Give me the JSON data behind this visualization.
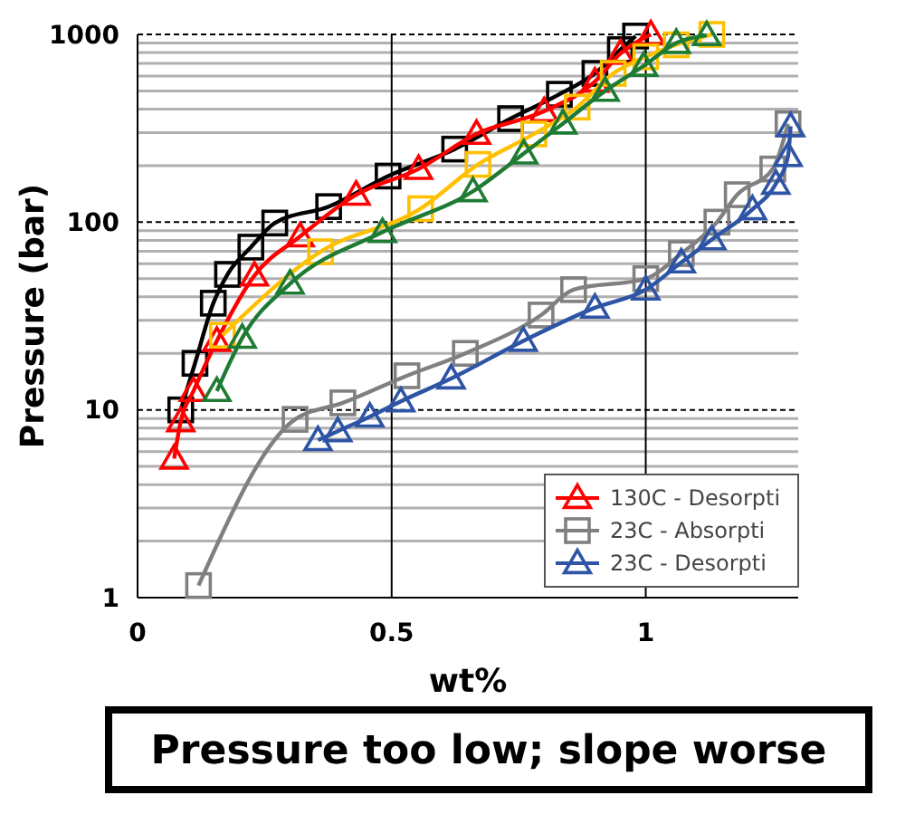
{
  "chart_data": {
    "type": "line",
    "xlabel": "wt%",
    "ylabel": "Pressure (bar)",
    "xlim": [
      0,
      1.3
    ],
    "xticks": [
      0,
      0.5,
      1
    ],
    "ylim": [
      1,
      1000
    ],
    "yticks": [
      1,
      10,
      100,
      1000
    ],
    "log": "y",
    "grid": true,
    "legend": "bottom right",
    "annotations": [
      "Pressure too low; slope worse"
    ],
    "series": [
      {
        "color": "#000000",
        "marker": "square",
        "x": [
          0.085,
          0.113,
          0.149,
          0.177,
          0.223,
          0.27,
          0.376,
          0.493,
          0.624,
          0.734,
          0.83,
          0.9,
          0.95,
          0.98
        ],
        "values": [
          10,
          17.7,
          37,
          52.7,
          73.6,
          98.9,
          121,
          176,
          245,
          356,
          480,
          620,
          830,
          980
        ]
      },
      {
        "color": "#ff0000",
        "marker": "triangle",
        "name": "130C - Desorpti",
        "x": [
          0.072,
          0.085,
          0.11,
          0.156,
          0.23,
          0.32,
          0.43,
          0.553,
          0.667,
          0.8,
          0.9,
          0.95,
          1.01
        ],
        "values": [
          5.5,
          8.7,
          12.6,
          23.3,
          51.9,
          84,
          140,
          192,
          295,
          390,
          560,
          790,
          1000
        ]
      },
      {
        "color": "#ffc000",
        "marker": "square",
        "x": [
          0.167,
          0.36,
          0.557,
          0.67,
          0.78,
          0.865,
          0.936,
          1.0,
          1.06,
          1.13
        ],
        "values": [
          25,
          69.6,
          118,
          203,
          295,
          410,
          620,
          760,
          880,
          1000
        ]
      },
      {
        "color": "#1e7b34",
        "marker": "triangle",
        "x": [
          0.156,
          0.206,
          0.3,
          0.482,
          0.66,
          0.76,
          0.837,
          0.92,
          0.996,
          1.06,
          1.12
        ],
        "values": [
          12.6,
          24.2,
          47,
          88.5,
          146,
          232,
          335,
          500,
          680,
          900,
          990
        ]
      },
      {
        "color": "#808080",
        "marker": "square",
        "name": "23C - Absorpti",
        "x": [
          0.12,
          0.31,
          0.404,
          0.53,
          0.645,
          0.794,
          0.858,
          1.0,
          1.07,
          1.14,
          1.18,
          1.25,
          1.28
        ],
        "values": [
          1.16,
          8.9,
          10.9,
          15.2,
          20,
          32,
          43.7,
          50,
          68,
          100,
          140,
          192,
          334
        ]
      },
      {
        "color": "#2e54a6",
        "marker": "triangle",
        "name": "23C - Desorpti",
        "x": [
          0.355,
          0.394,
          0.457,
          0.518,
          0.617,
          0.759,
          0.9,
          1.0,
          1.07,
          1.13,
          1.21,
          1.256,
          1.28,
          1.285
        ],
        "values": [
          6.9,
          7.7,
          9.2,
          11.1,
          14.7,
          23.3,
          35,
          43.7,
          61,
          80.9,
          117,
          160,
          225,
          324
        ]
      }
    ]
  }
}
